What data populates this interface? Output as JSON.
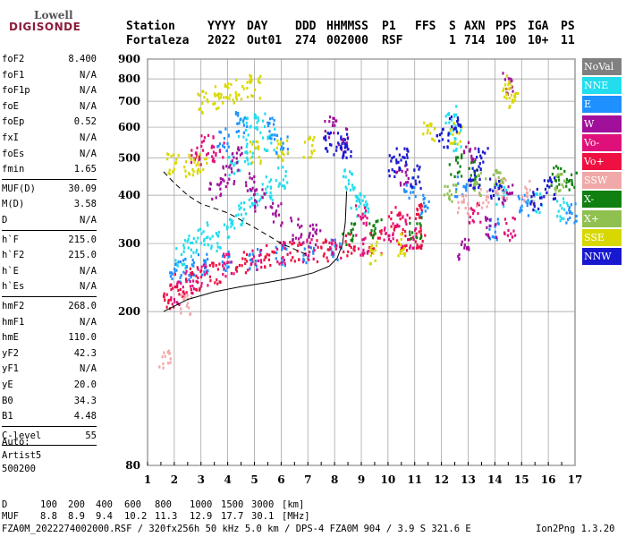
{
  "logo": {
    "top": "Lowell",
    "bottom": "DIGISONDE"
  },
  "header": {
    "row1": [
      "Station",
      "YYYY",
      "DAY",
      "DDD",
      "HHMMSS",
      "P1",
      "FFS",
      "S",
      "AXN",
      "PPS",
      "IGA",
      "PS"
    ],
    "row2": [
      "Fortaleza",
      "2022",
      "Out01",
      "274",
      "002000",
      "RSF",
      "1",
      "714",
      "100",
      "10+",
      "11"
    ]
  },
  "params": [
    {
      "name": "foF2",
      "value": "8.400"
    },
    {
      "name": "foF1",
      "value": "N/A"
    },
    {
      "name": "foF1p",
      "value": "N/A"
    },
    {
      "name": "foE",
      "value": "N/A"
    },
    {
      "name": "foEp",
      "value": "0.52"
    },
    {
      "name": "fxI",
      "value": "N/A"
    },
    {
      "name": "foEs",
      "value": "N/A"
    },
    {
      "name": "fmin",
      "value": "1.65"
    },
    {
      "name": "MUF(D)",
      "value": "30.09"
    },
    {
      "name": "M(D)",
      "value": "3.58"
    },
    {
      "name": "D",
      "value": "N/A"
    },
    {
      "name": "h`F",
      "value": "215.0"
    },
    {
      "name": "h`F2",
      "value": "215.0"
    },
    {
      "name": "h`E",
      "value": "N/A"
    },
    {
      "name": "h`Es",
      "value": "N/A"
    },
    {
      "name": "hmF2",
      "value": "268.0"
    },
    {
      "name": "hmF1",
      "value": "N/A"
    },
    {
      "name": "hmE",
      "value": "110.0"
    },
    {
      "name": "yF2",
      "value": "42.3"
    },
    {
      "name": "yF1",
      "value": "N/A"
    },
    {
      "name": "yE",
      "value": "20.0"
    },
    {
      "name": "B0",
      "value": "34.3"
    },
    {
      "name": "B1",
      "value": "4.48"
    },
    {
      "name": "C-level",
      "value": "55"
    }
  ],
  "auto": {
    "line1": "Auto:",
    "line2": "Artist5",
    "line3": "500200"
  },
  "legend": [
    {
      "label": "NoVal",
      "color": "#808080"
    },
    {
      "label": "NNE",
      "color": "#22ddee"
    },
    {
      "label": "E",
      "color": "#1e90ff"
    },
    {
      "label": "W",
      "color": "#a0109a"
    },
    {
      "label": "Vo-",
      "color": "#e0107a"
    },
    {
      "label": "Vo+",
      "color": "#ee1040"
    },
    {
      "label": "SSW",
      "color": "#f0a8a8"
    },
    {
      "label": "X-",
      "color": "#108010"
    },
    {
      "label": "X+",
      "color": "#90c050"
    },
    {
      "label": "SSE",
      "color": "#d8d800"
    },
    {
      "label": "NNW",
      "color": "#1818d0"
    }
  ],
  "footer": {
    "d_label": "D",
    "d_values": [
      "100",
      "200",
      "400",
      "600",
      "800",
      "1000",
      "1500",
      "3000",
      "[km]"
    ],
    "muf_label": "MUF",
    "muf_values": [
      "8.8",
      "8.9",
      "9.4",
      "10.2",
      "11.3",
      "12.9",
      "17.7",
      "30.1",
      "[MHz]"
    ],
    "file_line": "FZA0M_2022274002000.RSF / 320fx256h 50 kHz 5.0 km / DPS-4 FZA0M 904 / 3.9 S 321.6 E",
    "version": "Ion2Png 1.3.20"
  },
  "chart_data": {
    "type": "scatter",
    "xlim": [
      1,
      17
    ],
    "ylim": [
      80,
      900
    ],
    "y_scale": "log",
    "x_ticks": [
      1,
      2,
      3,
      4,
      5,
      6,
      7,
      8,
      9,
      10,
      11,
      12,
      13,
      14,
      15,
      16,
      17
    ],
    "y_ticks": [
      80,
      200,
      300,
      400,
      500,
      600,
      700,
      800,
      900
    ],
    "grid": true,
    "legend_position": "right",
    "series": [
      {
        "name": "NNE",
        "points": [
          [
            3.5,
            310
          ],
          [
            4.0,
            330
          ],
          [
            4.5,
            360
          ],
          [
            5.0,
            400
          ],
          [
            5.5,
            420
          ],
          [
            4.2,
            480
          ],
          [
            4.8,
            520
          ],
          [
            5.5,
            560
          ],
          [
            6.0,
            450
          ],
          [
            8.5,
            440
          ],
          [
            8.8,
            400
          ],
          [
            9.0,
            380
          ],
          [
            4.6,
            600
          ],
          [
            5.2,
            620
          ],
          [
            12.5,
            560
          ],
          [
            12.3,
            650
          ],
          [
            14.2,
            400
          ],
          [
            15.5,
            380
          ],
          [
            16.5,
            370
          ],
          [
            2.2,
            280
          ],
          [
            2.6,
            300
          ],
          [
            3.0,
            320
          ]
        ]
      },
      {
        "name": "E",
        "points": [
          [
            2.0,
            255
          ],
          [
            2.5,
            260
          ],
          [
            3.0,
            265
          ],
          [
            4.0,
            270
          ],
          [
            5.0,
            275
          ],
          [
            6.0,
            280
          ],
          [
            7.0,
            285
          ],
          [
            8.0,
            290
          ],
          [
            3.8,
            560
          ],
          [
            4.5,
            620
          ],
          [
            5.5,
            600
          ],
          [
            6.0,
            540
          ],
          [
            10.8,
            420
          ],
          [
            11.3,
            380
          ],
          [
            12.7,
            420
          ],
          [
            14.0,
            330
          ],
          [
            15.0,
            380
          ],
          [
            16.8,
            360
          ]
        ]
      },
      {
        "name": "W",
        "points": [
          [
            3.5,
            420
          ],
          [
            4.0,
            450
          ],
          [
            4.3,
            500
          ],
          [
            4.8,
            430
          ],
          [
            5.2,
            390
          ],
          [
            5.8,
            360
          ],
          [
            6.5,
            330
          ],
          [
            7.2,
            320
          ],
          [
            7.8,
            600
          ],
          [
            8.3,
            560
          ],
          [
            10.5,
            450
          ],
          [
            13.0,
            520
          ],
          [
            14.5,
            780
          ],
          [
            14.4,
            400
          ],
          [
            13.8,
            330
          ],
          [
            12.8,
            290
          ]
        ]
      },
      {
        "name": "Vo-",
        "points": [
          [
            2.0,
            225
          ],
          [
            2.5,
            240
          ],
          [
            3.0,
            250
          ],
          [
            4.0,
            265
          ],
          [
            5.0,
            275
          ],
          [
            6.0,
            285
          ],
          [
            7.0,
            290
          ],
          [
            8.0,
            295
          ],
          [
            9.0,
            300
          ],
          [
            10.0,
            320
          ],
          [
            11.0,
            310
          ],
          [
            2.8,
            500
          ],
          [
            3.2,
            550
          ],
          [
            3.6,
            520
          ],
          [
            9.0,
            360
          ],
          [
            10.5,
            340
          ],
          [
            13.2,
            360
          ],
          [
            14.5,
            330
          ]
        ]
      },
      {
        "name": "Vo+",
        "points": [
          [
            1.8,
            220
          ],
          [
            2.2,
            235
          ],
          [
            2.8,
            245
          ],
          [
            3.5,
            255
          ],
          [
            4.5,
            270
          ],
          [
            5.5,
            280
          ],
          [
            6.5,
            285
          ],
          [
            7.5,
            290
          ],
          [
            8.5,
            300
          ],
          [
            9.5,
            305
          ],
          [
            10.5,
            310
          ],
          [
            11.2,
            315
          ],
          [
            10.2,
            350
          ],
          [
            11.0,
            370
          ]
        ]
      },
      {
        "name": "SSW",
        "points": [
          [
            1.6,
            150
          ],
          [
            2.4,
            210
          ],
          [
            12.8,
            380
          ],
          [
            13.5,
            400
          ],
          [
            14.2,
            420
          ],
          [
            15.2,
            410
          ]
        ]
      },
      {
        "name": "X-",
        "points": [
          [
            8.5,
            320
          ],
          [
            9.5,
            330
          ],
          [
            11.0,
            330
          ],
          [
            12.5,
            480
          ],
          [
            13.2,
            470
          ],
          [
            16.2,
            450
          ],
          [
            16.8,
            440
          ]
        ]
      },
      {
        "name": "X+",
        "points": [
          [
            12.3,
            400
          ],
          [
            13.4,
            430
          ],
          [
            14.1,
            460
          ],
          [
            16.4,
            430
          ]
        ]
      },
      {
        "name": "SSE",
        "points": [
          [
            3.0,
            700
          ],
          [
            3.5,
            720
          ],
          [
            4.0,
            740
          ],
          [
            4.5,
            760
          ],
          [
            5.0,
            770
          ],
          [
            1.9,
            490
          ],
          [
            2.5,
            480
          ],
          [
            3.0,
            490
          ],
          [
            9.5,
            285
          ],
          [
            10.5,
            300
          ],
          [
            11.5,
            590
          ],
          [
            12.5,
            580
          ],
          [
            14.5,
            770
          ],
          [
            14.6,
            720
          ],
          [
            5.0,
            520
          ],
          [
            6.0,
            530
          ],
          [
            7.0,
            540
          ]
        ]
      },
      {
        "name": "NNW",
        "points": [
          [
            7.8,
            550
          ],
          [
            8.2,
            545
          ],
          [
            8.4,
            540
          ],
          [
            10.2,
            480
          ],
          [
            10.5,
            500
          ],
          [
            11.0,
            450
          ],
          [
            12.0,
            560
          ],
          [
            12.5,
            620
          ],
          [
            13.2,
            450
          ],
          [
            14.0,
            420
          ],
          [
            13.5,
            500
          ],
          [
            16.0,
            420
          ],
          [
            15.5,
            390
          ]
        ]
      }
    ],
    "curves": [
      {
        "style": "dashed",
        "points": [
          [
            1.6,
            460
          ],
          [
            2.0,
            430
          ],
          [
            2.5,
            400
          ],
          [
            3.0,
            380
          ],
          [
            3.5,
            370
          ],
          [
            4.0,
            360
          ],
          [
            4.5,
            345
          ],
          [
            5.0,
            330
          ],
          [
            5.5,
            315
          ],
          [
            6.0,
            300
          ],
          [
            6.5,
            290
          ],
          [
            7.0,
            280
          ]
        ]
      },
      {
        "style": "solid",
        "points": [
          [
            1.6,
            200
          ],
          [
            2.5,
            215
          ],
          [
            3.5,
            225
          ],
          [
            4.5,
            232
          ],
          [
            5.5,
            238
          ],
          [
            6.5,
            245
          ],
          [
            7.2,
            252
          ],
          [
            7.8,
            262
          ],
          [
            8.1,
            275
          ],
          [
            8.3,
            300
          ],
          [
            8.4,
            340
          ],
          [
            8.45,
            410
          ]
        ]
      }
    ]
  }
}
